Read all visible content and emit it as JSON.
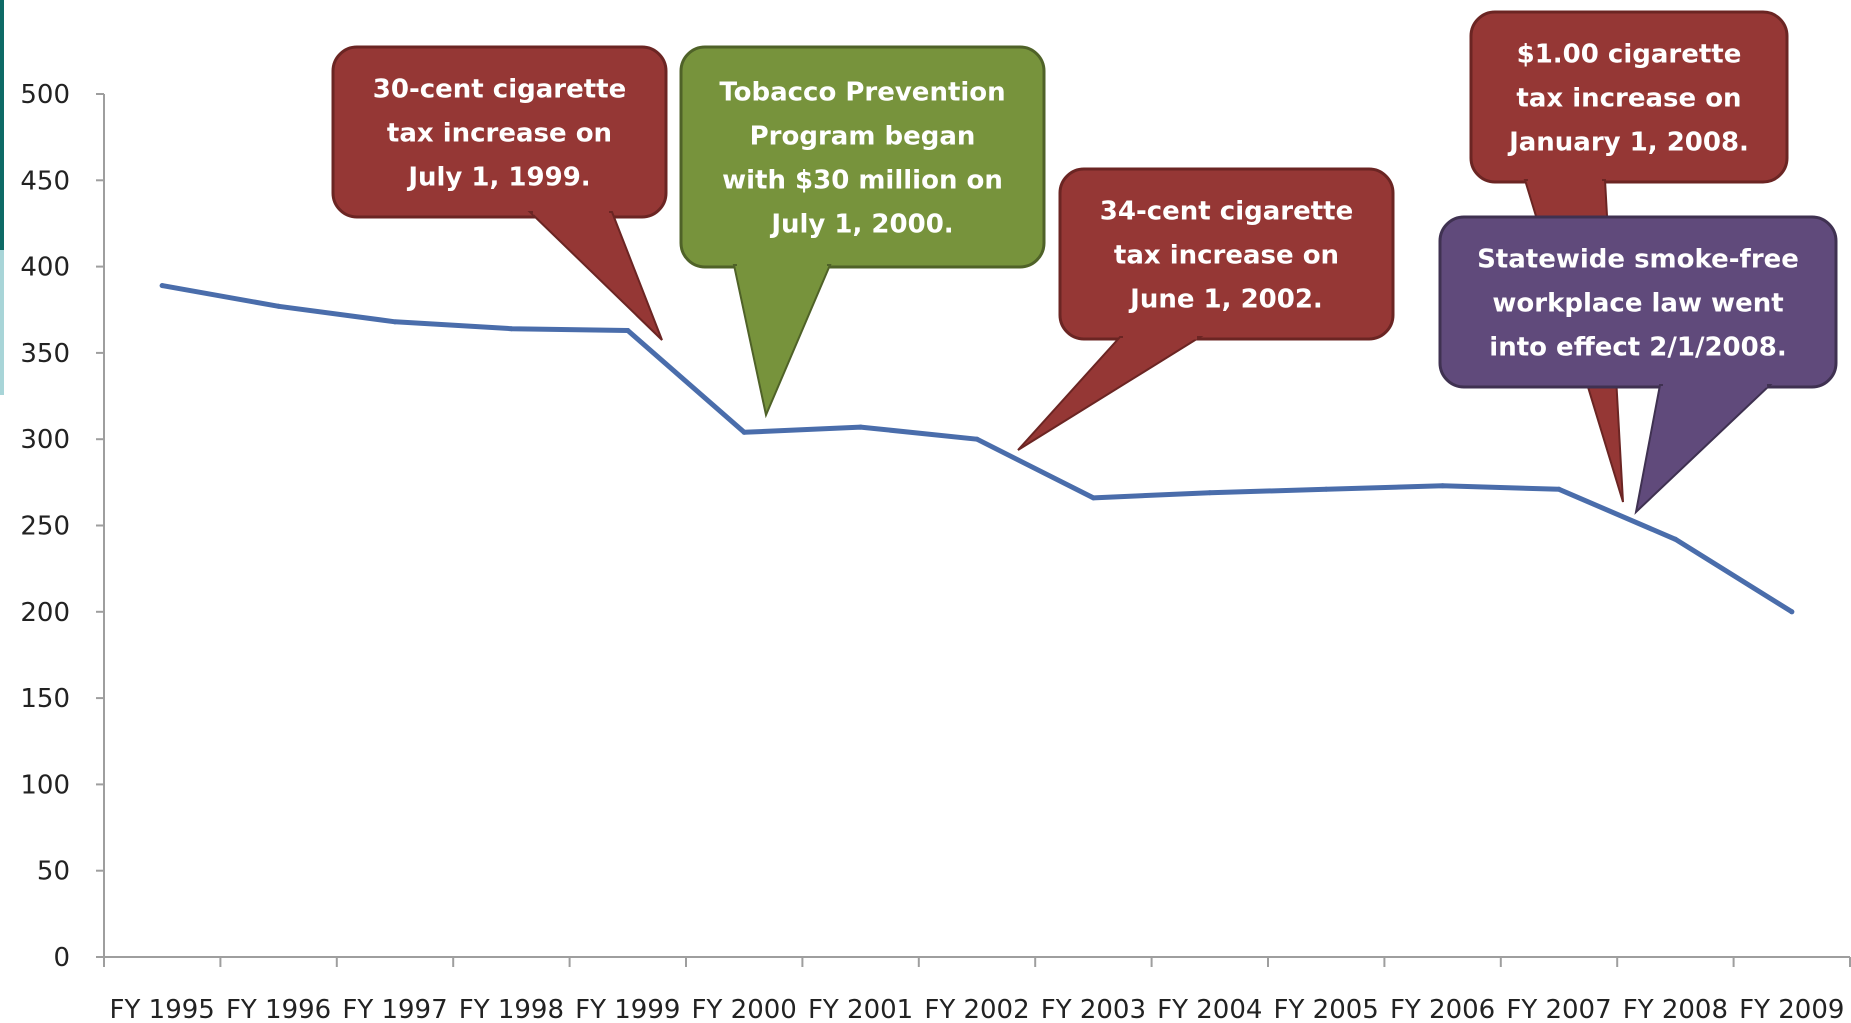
{
  "colors": {
    "line": "#4A6DAB",
    "axis": "#9E9E9E",
    "callout_red": "#953735",
    "callout_red_stroke": "#6B2523",
    "callout_green": "#77933C",
    "callout_green_stroke": "#4F6228",
    "callout_purple": "#604A7B",
    "callout_purple_stroke": "#3F3151",
    "left_accent": "#0E6B66",
    "left_accent_light": "#A8D5D8"
  },
  "chart_data": {
    "type": "line",
    "title": "",
    "xlabel": "",
    "ylabel": "",
    "categories": [
      "FY 1995",
      "FY 1996",
      "FY 1997",
      "FY 1998",
      "FY 1999",
      "FY 2000",
      "FY 2001",
      "FY 2002",
      "FY 2003",
      "FY 2004",
      "FY 2005",
      "FY 2006",
      "FY 2007",
      "FY 2008",
      "FY 2009"
    ],
    "series": [
      {
        "values": [
          389,
          377,
          368,
          364,
          363,
          304,
          307,
          300,
          266,
          269,
          271,
          273,
          271,
          242,
          200
        ]
      }
    ],
    "ylim": [
      0,
      500
    ],
    "yticks": [
      "0",
      "50",
      "100",
      "150",
      "200",
      "250",
      "300",
      "350",
      "400",
      "450",
      "500"
    ],
    "grid": false,
    "annotations": [
      {
        "id": "tax-1999",
        "color": "red",
        "lines": [
          "30-cent cigarette",
          "tax increase on",
          "July 1, 1999."
        ]
      },
      {
        "id": "prevention-2000",
        "color": "green",
        "lines": [
          "Tobacco Prevention",
          "Program began",
          "with $30 million on",
          "July 1, 2000."
        ]
      },
      {
        "id": "tax-2002",
        "color": "red",
        "lines": [
          "34-cent cigarette",
          "tax increase on",
          "June 1, 2002."
        ]
      },
      {
        "id": "tax-2008",
        "color": "red",
        "lines": [
          "$1.00 cigarette",
          "tax increase on",
          "January 1, 2008."
        ]
      },
      {
        "id": "smokefree-2008",
        "color": "purple",
        "lines": [
          "Statewide smoke-free",
          "workplace law went",
          "into effect 2/1/2008."
        ]
      }
    ]
  }
}
